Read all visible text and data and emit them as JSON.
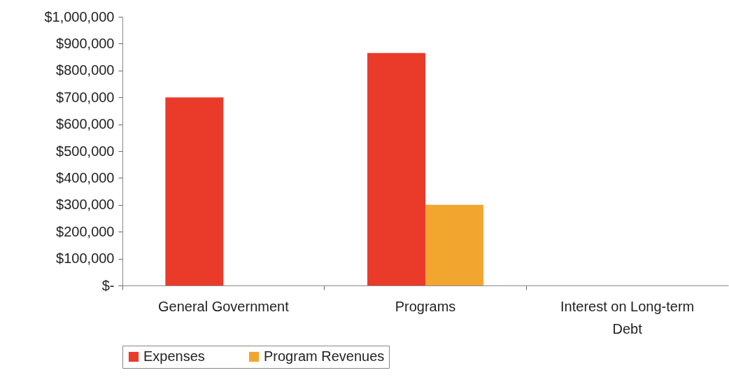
{
  "chart_data": {
    "type": "bar",
    "categories": [
      "General Government",
      "Programs",
      "Interest on Long-term Debt"
    ],
    "series": [
      {
        "name": "Expenses",
        "color": "#ea3a2a",
        "values": [
          700000,
          865000,
          null
        ]
      },
      {
        "name": "Program Revenues",
        "color": "#f2a630",
        "values": [
          null,
          300000,
          null
        ]
      }
    ],
    "ylim": [
      0,
      1000000
    ],
    "yticks": [
      {
        "value": 0,
        "label": "$-"
      },
      {
        "value": 100000,
        "label": "$100,000"
      },
      {
        "value": 200000,
        "label": "$200,000"
      },
      {
        "value": 300000,
        "label": "$300,000"
      },
      {
        "value": 400000,
        "label": "$400,000"
      },
      {
        "value": 500000,
        "label": "$500,000"
      },
      {
        "value": 600000,
        "label": "$600,000"
      },
      {
        "value": 700000,
        "label": "$700,000"
      },
      {
        "value": 800000,
        "label": "$800,000"
      },
      {
        "value": 900000,
        "label": "$900,000"
      },
      {
        "value": 1000000,
        "label": "$1,000,000"
      }
    ],
    "grid": false,
    "legend": "bottom"
  }
}
